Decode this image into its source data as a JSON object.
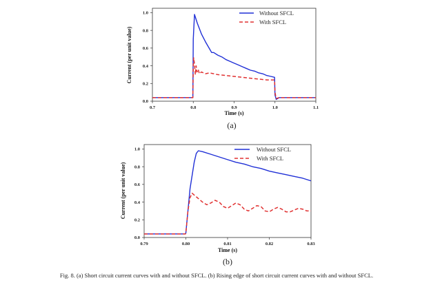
{
  "chart_data": [
    {
      "type": "line",
      "panel_label": "(a)",
      "xlabel": "Time (s)",
      "ylabel": "Current (per unit value)",
      "xlim": [
        0.7,
        1.1
      ],
      "ylim": [
        0.0,
        1.05
      ],
      "xticks": [
        "0.7",
        "0.8",
        "0.9",
        "1.0",
        "1.1"
      ],
      "xtick_values": [
        0.7,
        0.8,
        0.9,
        1.0,
        1.1
      ],
      "yticks": [
        "0.0",
        "0.2",
        "0.4",
        "0.6",
        "0.8",
        "1.0"
      ],
      "ytick_values": [
        0.0,
        0.2,
        0.4,
        0.6,
        0.8,
        1.0
      ],
      "legend_position": "top-right",
      "grid": false,
      "series": [
        {
          "name": "Without SFCL",
          "color": "#1f2fd6",
          "style": "solid",
          "x": [
            0.7,
            0.799,
            0.8,
            0.803,
            0.81,
            0.82,
            0.83,
            0.84,
            0.845,
            0.85,
            0.86,
            0.87,
            0.88,
            0.89,
            0.9,
            0.91,
            0.92,
            0.93,
            0.94,
            0.95,
            0.96,
            0.97,
            0.98,
            0.99,
            0.999,
            1.0,
            1.003,
            1.01,
            1.1
          ],
          "y": [
            0.04,
            0.04,
            0.7,
            0.98,
            0.88,
            0.76,
            0.67,
            0.59,
            0.55,
            0.55,
            0.52,
            0.5,
            0.47,
            0.45,
            0.43,
            0.41,
            0.39,
            0.37,
            0.35,
            0.34,
            0.32,
            0.31,
            0.29,
            0.28,
            0.27,
            0.07,
            0.02,
            0.04,
            0.04
          ]
        },
        {
          "name": "With SFCL",
          "color": "#e03030",
          "style": "dashed",
          "x": [
            0.7,
            0.799,
            0.8,
            0.801,
            0.803,
            0.805,
            0.807,
            0.809,
            0.812,
            0.815,
            0.82,
            0.83,
            0.84,
            0.85,
            0.86,
            0.88,
            0.9,
            0.92,
            0.94,
            0.96,
            0.98,
            0.999,
            1.0,
            1.003,
            1.01,
            1.1
          ],
          "y": [
            0.04,
            0.04,
            0.4,
            0.49,
            0.42,
            0.3,
            0.4,
            0.33,
            0.36,
            0.31,
            0.33,
            0.31,
            0.32,
            0.31,
            0.3,
            0.29,
            0.28,
            0.27,
            0.26,
            0.25,
            0.24,
            0.24,
            0.1,
            0.03,
            0.04,
            0.04
          ]
        }
      ]
    },
    {
      "type": "line",
      "panel_label": "(b)",
      "xlabel": "Time (s)",
      "ylabel": "Current (per unit value)",
      "xlim": [
        0.79,
        0.83
      ],
      "ylim": [
        0.0,
        1.05
      ],
      "xticks": [
        "0.79",
        "0.80",
        "0.81",
        "0.82",
        "0.83"
      ],
      "xtick_values": [
        0.79,
        0.8,
        0.81,
        0.82,
        0.83
      ],
      "yticks": [
        "0.0",
        "0.2",
        "0.4",
        "0.6",
        "0.8",
        "1.0"
      ],
      "ytick_values": [
        0.0,
        0.2,
        0.4,
        0.6,
        0.8,
        1.0
      ],
      "legend_position": "top-right",
      "grid": false,
      "series": [
        {
          "name": "Without SFCL",
          "color": "#1f2fd6",
          "style": "solid",
          "x": [
            0.79,
            0.7999,
            0.8,
            0.801,
            0.802,
            0.8025,
            0.803,
            0.804,
            0.806,
            0.808,
            0.81,
            0.812,
            0.814,
            0.816,
            0.818,
            0.82,
            0.822,
            0.824,
            0.826,
            0.828,
            0.83
          ],
          "y": [
            0.04,
            0.04,
            0.05,
            0.55,
            0.85,
            0.95,
            0.98,
            0.97,
            0.94,
            0.91,
            0.88,
            0.85,
            0.83,
            0.8,
            0.78,
            0.75,
            0.73,
            0.71,
            0.69,
            0.67,
            0.64
          ]
        },
        {
          "name": "With SFCL",
          "color": "#e03030",
          "style": "dashed",
          "x": [
            0.79,
            0.7999,
            0.8,
            0.8005,
            0.801,
            0.8015,
            0.802,
            0.803,
            0.804,
            0.805,
            0.806,
            0.807,
            0.808,
            0.809,
            0.81,
            0.811,
            0.812,
            0.813,
            0.814,
            0.815,
            0.816,
            0.817,
            0.818,
            0.819,
            0.82,
            0.821,
            0.822,
            0.823,
            0.824,
            0.825,
            0.826,
            0.827,
            0.828,
            0.829,
            0.83
          ],
          "y": [
            0.04,
            0.04,
            0.05,
            0.3,
            0.45,
            0.5,
            0.48,
            0.44,
            0.4,
            0.37,
            0.39,
            0.42,
            0.4,
            0.35,
            0.33,
            0.36,
            0.39,
            0.37,
            0.32,
            0.3,
            0.33,
            0.36,
            0.35,
            0.3,
            0.29,
            0.32,
            0.34,
            0.32,
            0.29,
            0.29,
            0.31,
            0.33,
            0.32,
            0.3,
            0.3
          ]
        }
      ]
    }
  ],
  "caption": "Fig. 8. (a) Short circuit current curves with and without SFCL.  (b) Rising edge of short circuit current curves with and without SFCL."
}
